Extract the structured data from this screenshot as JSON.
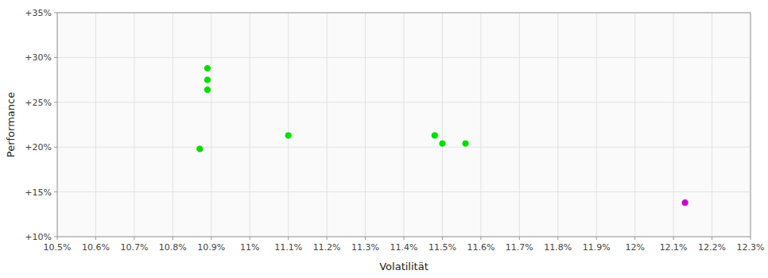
{
  "chart_data": {
    "type": "scatter",
    "xlabel": "Volatilität",
    "ylabel": "Performance",
    "xlim": [
      10.5,
      12.3
    ],
    "ylim": [
      10.0,
      35.0
    ],
    "xticks": [
      {
        "value": 10.5,
        "label": "10.5%"
      },
      {
        "value": 10.6,
        "label": "10.6%"
      },
      {
        "value": 10.7,
        "label": "10.7%"
      },
      {
        "value": 10.8,
        "label": "10.8%"
      },
      {
        "value": 10.9,
        "label": "10.9%"
      },
      {
        "value": 11.0,
        "label": "11%"
      },
      {
        "value": 11.1,
        "label": "11.1%"
      },
      {
        "value": 11.2,
        "label": "11.2%"
      },
      {
        "value": 11.3,
        "label": "11.3%"
      },
      {
        "value": 11.4,
        "label": "11.4%"
      },
      {
        "value": 11.5,
        "label": "11.5%"
      },
      {
        "value": 11.6,
        "label": "11.6%"
      },
      {
        "value": 11.7,
        "label": "11.7%"
      },
      {
        "value": 11.8,
        "label": "11.8%"
      },
      {
        "value": 11.9,
        "label": "11.9%"
      },
      {
        "value": 12.0,
        "label": "12%"
      },
      {
        "value": 12.1,
        "label": "12.1%"
      },
      {
        "value": 12.2,
        "label": "12.2%"
      },
      {
        "value": 12.3,
        "label": "12.3%"
      }
    ],
    "yticks": [
      {
        "value": 10,
        "label": "+10%"
      },
      {
        "value": 15,
        "label": "+15%"
      },
      {
        "value": 20,
        "label": "+20%"
      },
      {
        "value": 25,
        "label": "+25%"
      },
      {
        "value": 30,
        "label": "+30%"
      },
      {
        "value": 35,
        "label": "+35%"
      }
    ],
    "grid": true,
    "series": [
      {
        "color": "#00dd00",
        "x": [
          10.89,
          10.89,
          10.89,
          10.87,
          11.1,
          11.48,
          11.5,
          11.56
        ],
        "values": [
          28.8,
          27.5,
          26.4,
          19.8,
          21.3,
          21.3,
          20.4,
          20.4
        ]
      },
      {
        "color": "#cc00cc",
        "x": [
          12.13
        ],
        "values": [
          13.8
        ]
      }
    ]
  }
}
